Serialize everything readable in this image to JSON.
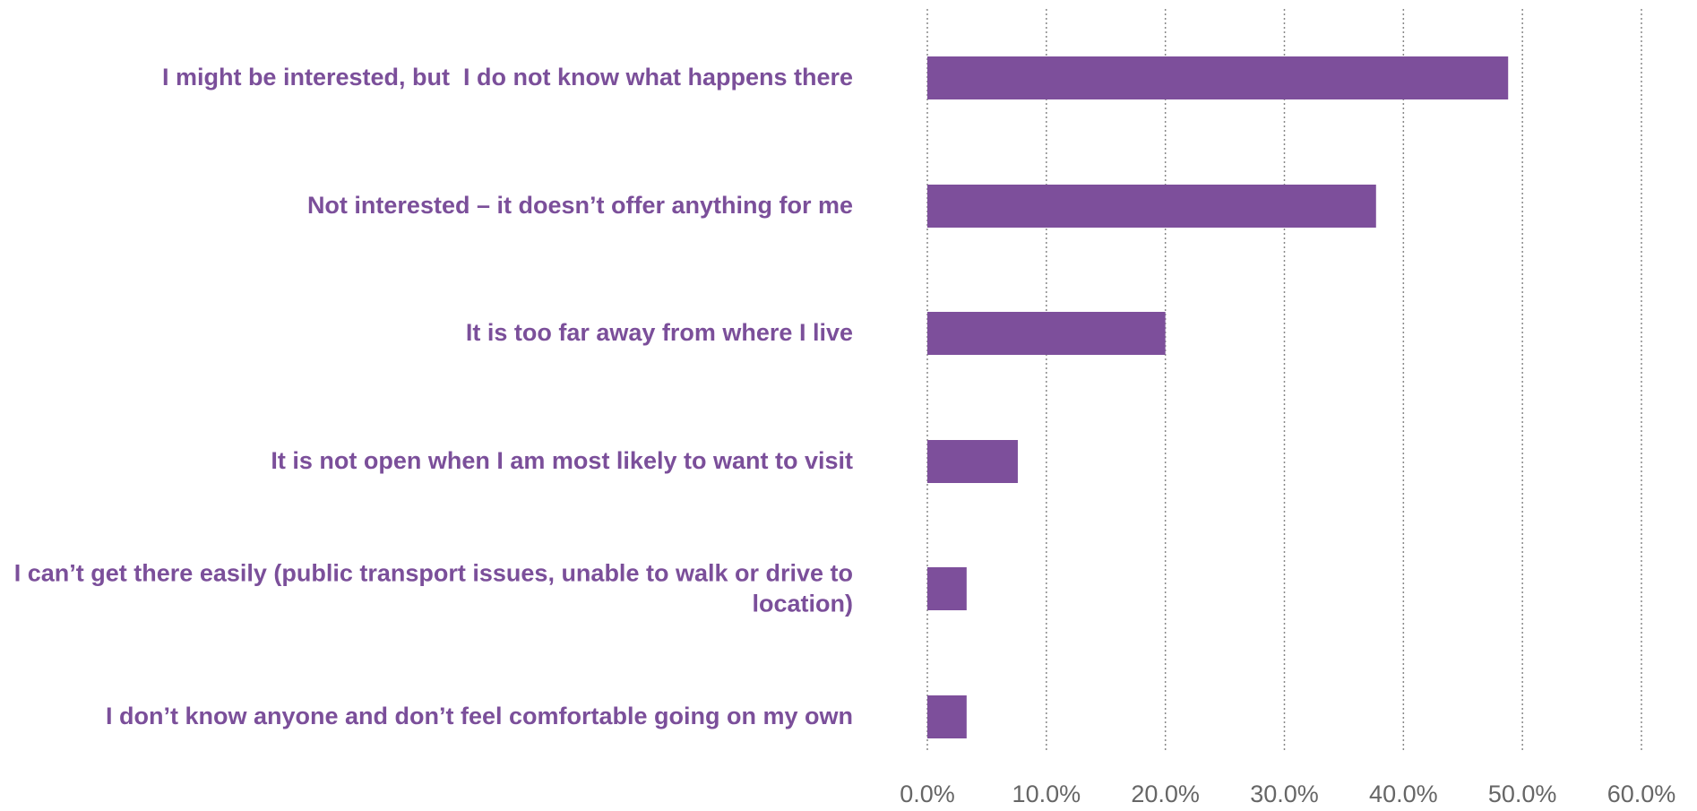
{
  "chart_data": {
    "type": "barh",
    "categories": [
      "I might be interested, but  I do not know what happens there",
      "Not interested – it doesn’t offer anything for me",
      "It is too far away from where I live",
      "It is not open when I am most likely to want to visit",
      "I can’t get there easily (public transport issues, unable to walk or drive to location)",
      "I don’t know anyone and don’t feel comfortable going on my own"
    ],
    "values": [
      48.8,
      37.7,
      20.0,
      7.6,
      3.3,
      3.3
    ],
    "color": "#7d4f9b",
    "xlim": [
      0,
      60
    ],
    "xticks": [
      {
        "value": 0,
        "label": "0.0%"
      },
      {
        "value": 10,
        "label": "10.0%"
      },
      {
        "value": 20,
        "label": "20.0%"
      },
      {
        "value": 30,
        "label": "30.0%"
      },
      {
        "value": 40,
        "label": "40.0%"
      },
      {
        "value": 50,
        "label": "50.0%"
      },
      {
        "value": 60,
        "label": "60.0%"
      }
    ],
    "grid": true
  }
}
